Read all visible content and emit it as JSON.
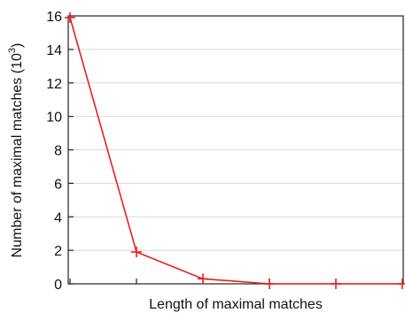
{
  "chart_data": {
    "type": "line",
    "xlabel": "Length of maximal matches",
    "ylabel": "Number of maximal matches (10",
    "ylabel_exponent": "3",
    "ylabel_suffix": ")",
    "ylim": [
      0,
      16
    ],
    "yticks": [
      "0",
      "2",
      "4",
      "6",
      "8",
      "10",
      "12",
      "14",
      "16"
    ],
    "grid": true,
    "series": [
      {
        "color": "#e8211c",
        "marker": "plus",
        "x": [
          1,
          2,
          3,
          4,
          5,
          6
        ],
        "y": [
          15.9,
          1.9,
          0.3,
          0.0,
          0.0,
          0.0
        ]
      }
    ]
  }
}
